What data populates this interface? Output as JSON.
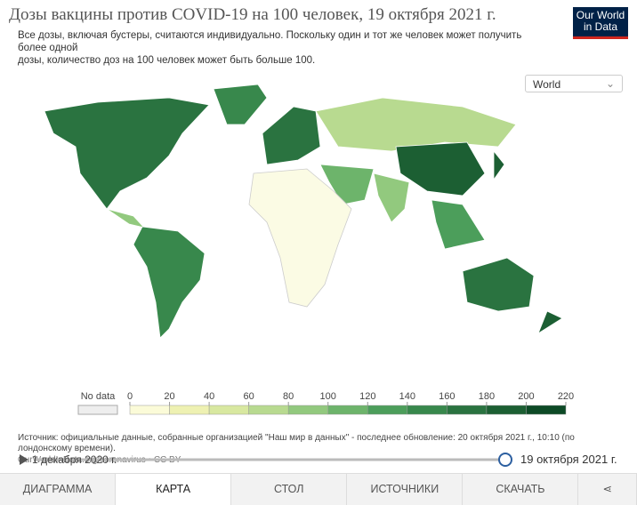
{
  "header": {
    "title": "Дозы вакцины против COVID-19 на 100 человек, 19 октября 2021 г.",
    "subtitle": [
      "Все дозы, включая бустеры, считаются индивидуально. Поскольку один и тот же человек может получить",
      "более одной",
      "дозы, количество доз на 100 человек может быть больше 100."
    ],
    "logo": [
      "Our World",
      "in Data"
    ]
  },
  "controls": {
    "region": "World"
  },
  "legend": {
    "no_data": "No data",
    "ticks": [
      0,
      20,
      40,
      60,
      80,
      100,
      120,
      140,
      160,
      180,
      200,
      220
    ],
    "colors": [
      "#fbfbd8",
      "#eef1b2",
      "#d8e8a0",
      "#b8da90",
      "#92c97e",
      "#6db46b",
      "#4c9e5b",
      "#38884c",
      "#2a7340",
      "#1c5f33",
      "#0d4a26"
    ]
  },
  "footer": {
    "source": "Источник: официальные данные, собранные организацией \"Наш мир в данных\" - последнее обновление: 20 октября 2021 г., 10:10 (по лондонскому времени).",
    "license": "OurWorldInData.org/coronavirus • CC BY",
    "start_date": "1 декабря 2020 г.",
    "end_date": "19 октября 2021 г."
  },
  "tabs": [
    "ДИАГРАММА",
    "КАРТА",
    "СТОЛ",
    "ИСТОЧНИКИ",
    "СКАЧАТЬ"
  ]
}
